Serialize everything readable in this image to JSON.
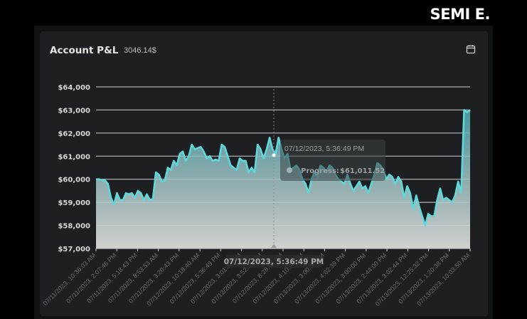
{
  "brand": "SEMI E.",
  "header": {
    "title": "Account P&L",
    "value": "3046.14$"
  },
  "tooltip": {
    "date": "07/12/2023, 5:36:49 PM",
    "label": "Progress",
    "value": "$61,011.52"
  },
  "x_crosshair_label": "07/12/2023, 5:36:49 PM",
  "colors": {
    "line": "#5fd8dc",
    "background": "#1e1f22",
    "grid": "#d0d0d0"
  },
  "chart_data": {
    "type": "area",
    "ylim": [
      57000,
      64000
    ],
    "yticks": [
      "$64,000",
      "$63,000",
      "$62,000",
      "$61,000",
      "$60,000",
      "$59,000",
      "$58,000",
      "$57,000"
    ],
    "xticks": [
      "07/11/2023, 10:36:03 AM",
      "07/11/2023, 2:07:46 PM",
      "07/11/2023, 5:18:43 PM",
      "07/11/2023, 8:53:53 AM",
      "07/11/2023, 3:20:43 PM",
      "07/12/2023, 10:18:40 AM",
      "07/12/2023, 5:36:49 PM",
      "07/12/2023, 3:01:37 PM",
      "07/12/2023, 3:52:35 PM",
      "07/12/2023, 8:28:44 AM",
      "07/12/2023, 4:10:50 PM",
      "07/13/2023, 3:00:00 PM",
      "07/13/2023, 4:02:39 PM",
      "07/13/2023, 3:00:00 PM",
      "07/13/2023, 2:44:00 PM",
      "07/13/2023, 3:02:44 PM",
      "07/13/2023, 12:25:32 PM",
      "07/13/2023, 1:20:38 PM",
      "07/13/2023, 10:03:50 AM"
    ],
    "values": [
      60000,
      60000,
      59950,
      59950,
      59800,
      59200,
      58900,
      59400,
      59100,
      59100,
      59400,
      59350,
      59400,
      59200,
      59500,
      59400,
      59100,
      59350,
      59100,
      59150,
      60300,
      60200,
      59900,
      59950,
      60500,
      60400,
      60800,
      60600,
      61100,
      61200,
      60800,
      61000,
      61500,
      61300,
      61350,
      61400,
      61200,
      60900,
      61000,
      60800,
      60850,
      60800,
      61500,
      61400,
      61000,
      60600,
      60500,
      60400,
      60900,
      60800,
      60800,
      60300,
      60500,
      60300,
      61500,
      61300,
      60900,
      61300,
      61800,
      61300,
      61100,
      61800,
      61300,
      60900,
      61100,
      60400,
      60500,
      60600,
      60400,
      60000,
      59800,
      59400,
      60000,
      60300,
      60100,
      60600,
      60500,
      60300,
      60600,
      60500,
      60200,
      60000,
      59900,
      59800,
      60200,
      59800,
      59500,
      59700,
      59900,
      59600,
      59700,
      59400,
      59800,
      60200,
      60700,
      60600,
      60400,
      60000,
      60200,
      60100,
      59800,
      60100,
      59900,
      59200,
      59700,
      59400,
      58700,
      59300,
      58800,
      58400,
      58000,
      58500,
      58400,
      58400,
      59100,
      59600,
      59100,
      59200,
      59100,
      59000,
      59300,
      59900,
      59400,
      63000,
      62900,
      63000
    ]
  }
}
